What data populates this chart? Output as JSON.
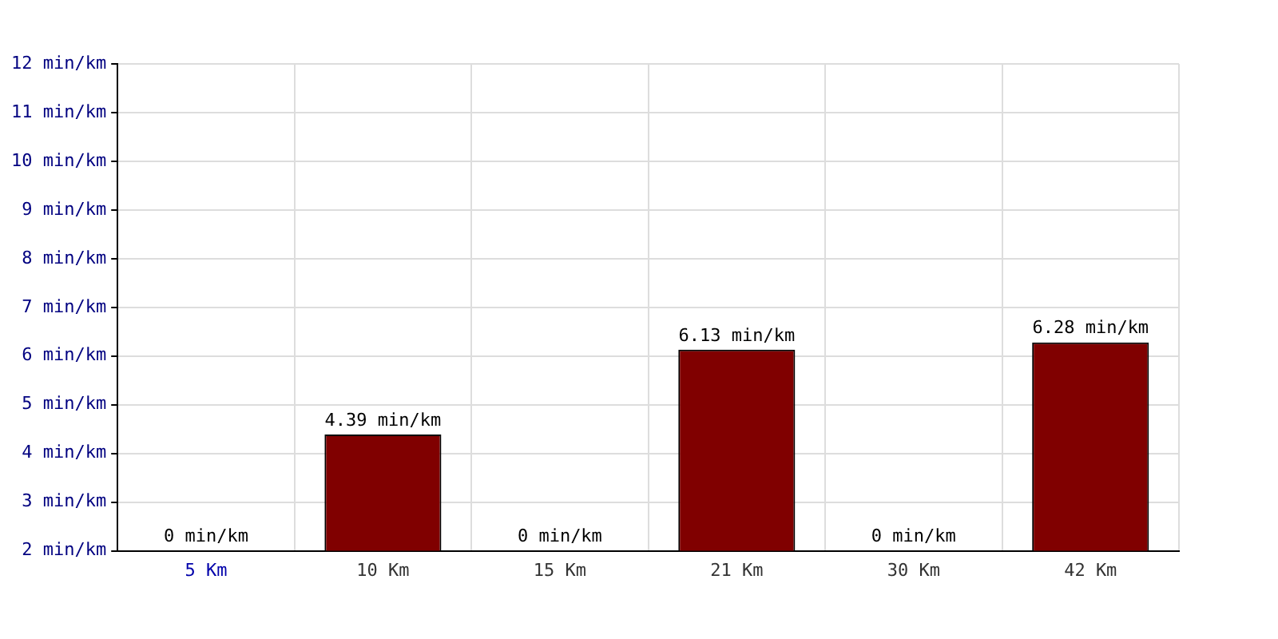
{
  "chart_data": {
    "type": "bar",
    "categories": [
      "5 Km",
      "10 Km",
      "15 Km",
      "21 Km",
      "30 Km",
      "42 Km"
    ],
    "values": [
      null,
      4.39,
      null,
      6.13,
      null,
      6.28
    ],
    "value_labels": [
      "0 min/km",
      "4.39 min/km",
      "0 min/km",
      "6.13 min/km",
      "0 min/km",
      "6.28 min/km"
    ],
    "color": "#800000",
    "ylim": [
      2,
      12
    ],
    "yticks": [
      {
        "value": 2,
        "label": "2 min/km"
      },
      {
        "value": 3,
        "label": "3 min/km"
      },
      {
        "value": 4,
        "label": "4 min/km"
      },
      {
        "value": 5,
        "label": "5 min/km"
      },
      {
        "value": 6,
        "label": "6 min/km"
      },
      {
        "value": 7,
        "label": "7 min/km"
      },
      {
        "value": 8,
        "label": "8 min/km"
      },
      {
        "value": 9,
        "label": "9 min/km"
      },
      {
        "value": 10,
        "label": "10 min/km"
      },
      {
        "value": 11,
        "label": "11 min/km"
      },
      {
        "value": 12,
        "label": "12 min/km"
      }
    ],
    "grid": true,
    "legend": false
  }
}
